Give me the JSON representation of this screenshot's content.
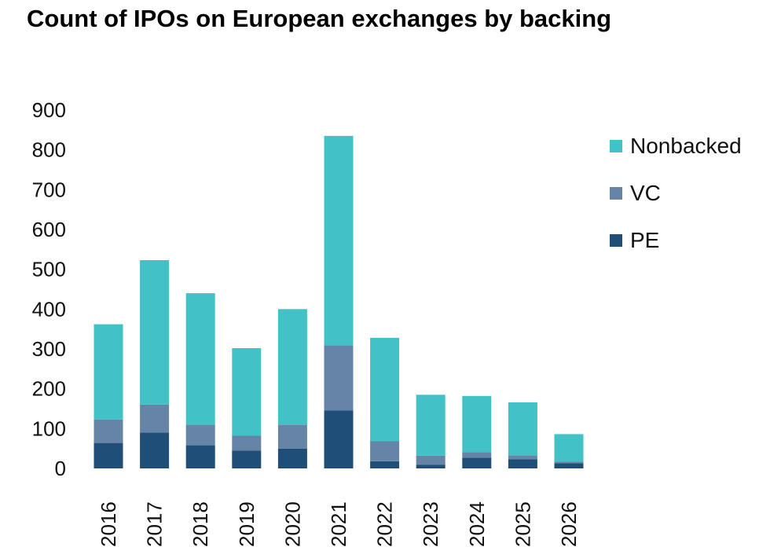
{
  "chart_data": {
    "type": "bar",
    "stacked": true,
    "title": "Count of IPOs on European exchanges by backing",
    "xlabel": "",
    "ylabel": "",
    "ylim": [
      0,
      900
    ],
    "yticks": [
      "0",
      "100",
      "200",
      "300",
      "400",
      "500",
      "600",
      "700",
      "800",
      "900"
    ],
    "categories": [
      "2016",
      "2017",
      "2018",
      "2019",
      "2020",
      "2021",
      "2022",
      "2023",
      "2024",
      "2025",
      "2026"
    ],
    "series": [
      {
        "name": "PE",
        "color": "#1f4e79",
        "values": [
          64,
          90,
          58,
          45,
          50,
          145,
          18,
          9,
          27,
          23,
          13
        ]
      },
      {
        "name": "VC",
        "color": "#6685a6",
        "values": [
          59,
          70,
          52,
          37,
          60,
          164,
          50,
          23,
          14,
          10,
          4
        ]
      },
      {
        "name": "Nonbacked",
        "color": "#42c1c7",
        "values": [
          239,
          363,
          330,
          220,
          290,
          526,
          260,
          153,
          141,
          133,
          69
        ]
      }
    ],
    "legend": {
      "position": "right",
      "order": [
        "Nonbacked",
        "VC",
        "PE"
      ]
    },
    "grid": false
  }
}
